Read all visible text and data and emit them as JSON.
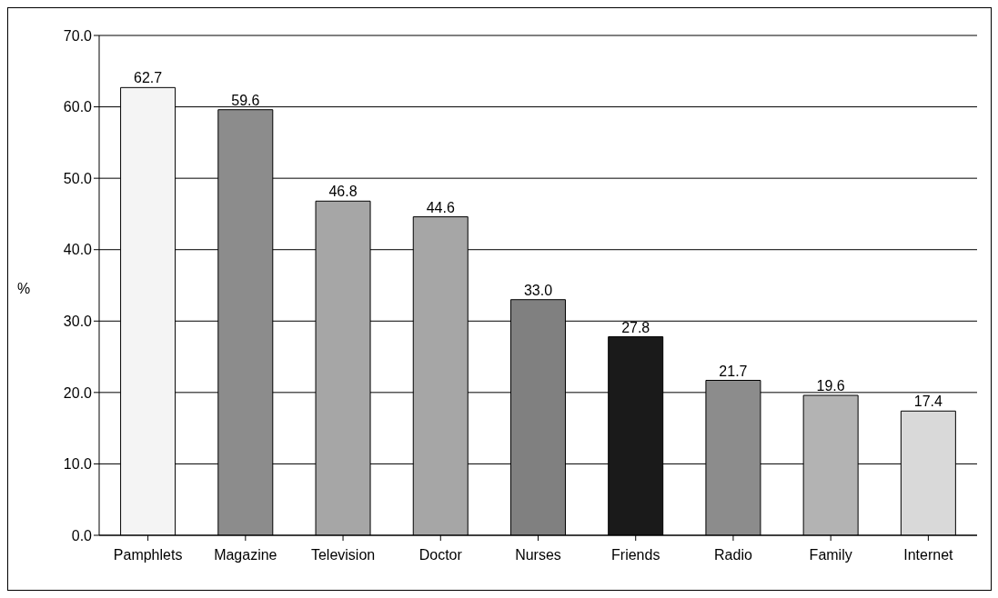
{
  "chart_data": {
    "type": "bar",
    "ylabel": "%",
    "categories": [
      "Pamphlets",
      "Magazine",
      "Television",
      "Doctor",
      "Nurses",
      "Friends",
      "Radio",
      "Family",
      "Internet"
    ],
    "values": [
      62.7,
      59.6,
      46.8,
      44.6,
      33.0,
      27.8,
      21.7,
      19.6,
      17.4
    ],
    "colors": [
      "#f4f4f4",
      "#8c8c8c",
      "#a6a6a6",
      "#a6a6a6",
      "#808080",
      "#1a1a1a",
      "#8c8c8c",
      "#b3b3b3",
      "#d9d9d9"
    ],
    "ylim": [
      0,
      70
    ],
    "yticks": [
      {
        "value": 0,
        "label": "0.0"
      },
      {
        "value": 10,
        "label": "10.0"
      },
      {
        "value": 20,
        "label": "20.0"
      },
      {
        "value": 30,
        "label": "30.0"
      },
      {
        "value": 40,
        "label": "40.0"
      },
      {
        "value": 50,
        "label": "50.0"
      },
      {
        "value": 60,
        "label": "60.0"
      },
      {
        "value": 70,
        "label": "70.0"
      }
    ],
    "value_labels": [
      "62.7",
      "59.6",
      "46.8",
      "44.6",
      "33.0",
      "27.8",
      "21.7",
      "19.6",
      "17.4"
    ],
    "grid": "y"
  }
}
